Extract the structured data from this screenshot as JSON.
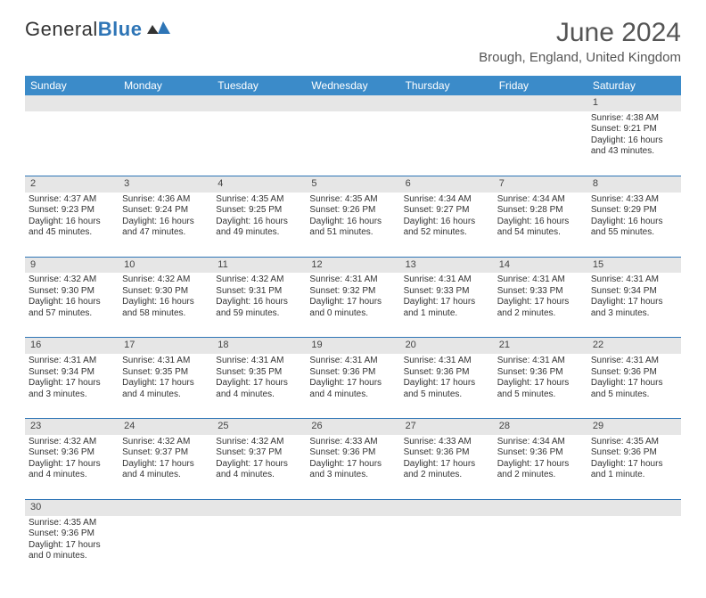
{
  "logo": {
    "main": "General",
    "accent": "Blue"
  },
  "title": "June 2024",
  "subtitle": "Brough, England, United Kingdom",
  "colors": {
    "header_bg": "#3b8bc9",
    "header_fg": "#ffffff",
    "daynum_bg": "#e6e6e6",
    "row_divider": "#2e75b6",
    "text": "#333333",
    "accent": "#2e75b6"
  },
  "daysOfWeek": [
    "Sunday",
    "Monday",
    "Tuesday",
    "Wednesday",
    "Thursday",
    "Friday",
    "Saturday"
  ],
  "weeks": [
    [
      null,
      null,
      null,
      null,
      null,
      null,
      {
        "d": "1",
        "sr": "4:38 AM",
        "ss": "9:21 PM",
        "dl": "16 hours and 43 minutes."
      }
    ],
    [
      {
        "d": "2",
        "sr": "4:37 AM",
        "ss": "9:23 PM",
        "dl": "16 hours and 45 minutes."
      },
      {
        "d": "3",
        "sr": "4:36 AM",
        "ss": "9:24 PM",
        "dl": "16 hours and 47 minutes."
      },
      {
        "d": "4",
        "sr": "4:35 AM",
        "ss": "9:25 PM",
        "dl": "16 hours and 49 minutes."
      },
      {
        "d": "5",
        "sr": "4:35 AM",
        "ss": "9:26 PM",
        "dl": "16 hours and 51 minutes."
      },
      {
        "d": "6",
        "sr": "4:34 AM",
        "ss": "9:27 PM",
        "dl": "16 hours and 52 minutes."
      },
      {
        "d": "7",
        "sr": "4:34 AM",
        "ss": "9:28 PM",
        "dl": "16 hours and 54 minutes."
      },
      {
        "d": "8",
        "sr": "4:33 AM",
        "ss": "9:29 PM",
        "dl": "16 hours and 55 minutes."
      }
    ],
    [
      {
        "d": "9",
        "sr": "4:32 AM",
        "ss": "9:30 PM",
        "dl": "16 hours and 57 minutes."
      },
      {
        "d": "10",
        "sr": "4:32 AM",
        "ss": "9:30 PM",
        "dl": "16 hours and 58 minutes."
      },
      {
        "d": "11",
        "sr": "4:32 AM",
        "ss": "9:31 PM",
        "dl": "16 hours and 59 minutes."
      },
      {
        "d": "12",
        "sr": "4:31 AM",
        "ss": "9:32 PM",
        "dl": "17 hours and 0 minutes."
      },
      {
        "d": "13",
        "sr": "4:31 AM",
        "ss": "9:33 PM",
        "dl": "17 hours and 1 minute."
      },
      {
        "d": "14",
        "sr": "4:31 AM",
        "ss": "9:33 PM",
        "dl": "17 hours and 2 minutes."
      },
      {
        "d": "15",
        "sr": "4:31 AM",
        "ss": "9:34 PM",
        "dl": "17 hours and 3 minutes."
      }
    ],
    [
      {
        "d": "16",
        "sr": "4:31 AM",
        "ss": "9:34 PM",
        "dl": "17 hours and 3 minutes."
      },
      {
        "d": "17",
        "sr": "4:31 AM",
        "ss": "9:35 PM",
        "dl": "17 hours and 4 minutes."
      },
      {
        "d": "18",
        "sr": "4:31 AM",
        "ss": "9:35 PM",
        "dl": "17 hours and 4 minutes."
      },
      {
        "d": "19",
        "sr": "4:31 AM",
        "ss": "9:36 PM",
        "dl": "17 hours and 4 minutes."
      },
      {
        "d": "20",
        "sr": "4:31 AM",
        "ss": "9:36 PM",
        "dl": "17 hours and 5 minutes."
      },
      {
        "d": "21",
        "sr": "4:31 AM",
        "ss": "9:36 PM",
        "dl": "17 hours and 5 minutes."
      },
      {
        "d": "22",
        "sr": "4:31 AM",
        "ss": "9:36 PM",
        "dl": "17 hours and 5 minutes."
      }
    ],
    [
      {
        "d": "23",
        "sr": "4:32 AM",
        "ss": "9:36 PM",
        "dl": "17 hours and 4 minutes."
      },
      {
        "d": "24",
        "sr": "4:32 AM",
        "ss": "9:37 PM",
        "dl": "17 hours and 4 minutes."
      },
      {
        "d": "25",
        "sr": "4:32 AM",
        "ss": "9:37 PM",
        "dl": "17 hours and 4 minutes."
      },
      {
        "d": "26",
        "sr": "4:33 AM",
        "ss": "9:36 PM",
        "dl": "17 hours and 3 minutes."
      },
      {
        "d": "27",
        "sr": "4:33 AM",
        "ss": "9:36 PM",
        "dl": "17 hours and 2 minutes."
      },
      {
        "d": "28",
        "sr": "4:34 AM",
        "ss": "9:36 PM",
        "dl": "17 hours and 2 minutes."
      },
      {
        "d": "29",
        "sr": "4:35 AM",
        "ss": "9:36 PM",
        "dl": "17 hours and 1 minute."
      }
    ],
    [
      {
        "d": "30",
        "sr": "4:35 AM",
        "ss": "9:36 PM",
        "dl": "17 hours and 0 minutes."
      },
      null,
      null,
      null,
      null,
      null,
      null
    ]
  ],
  "labels": {
    "sunrise": "Sunrise: ",
    "sunset": "Sunset: ",
    "daylight": "Daylight: "
  }
}
